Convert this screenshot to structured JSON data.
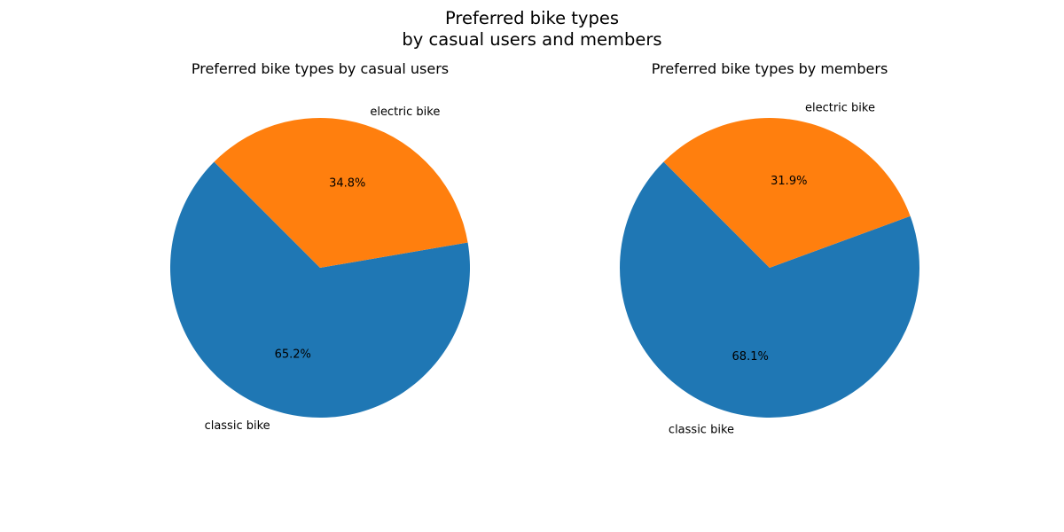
{
  "figure": {
    "title_line1": "Preferred bike types",
    "title_line2": "by casual users and members"
  },
  "chart_data": [
    {
      "type": "pie",
      "title": "Preferred bike types by casual users",
      "categories": [
        "classic bike",
        "electric bike"
      ],
      "values": [
        65.2,
        34.8
      ],
      "pct_labels": [
        "65.2%",
        "34.8%"
      ],
      "colors": [
        "#1f77b4",
        "#ff7f0e"
      ],
      "start_angle_deg": 135
    },
    {
      "type": "pie",
      "title": "Preferred bike types by members",
      "categories": [
        "classic bike",
        "electric bike"
      ],
      "values": [
        68.1,
        31.9
      ],
      "pct_labels": [
        "68.1%",
        "31.9%"
      ],
      "colors": [
        "#1f77b4",
        "#ff7f0e"
      ],
      "start_angle_deg": 135
    }
  ]
}
